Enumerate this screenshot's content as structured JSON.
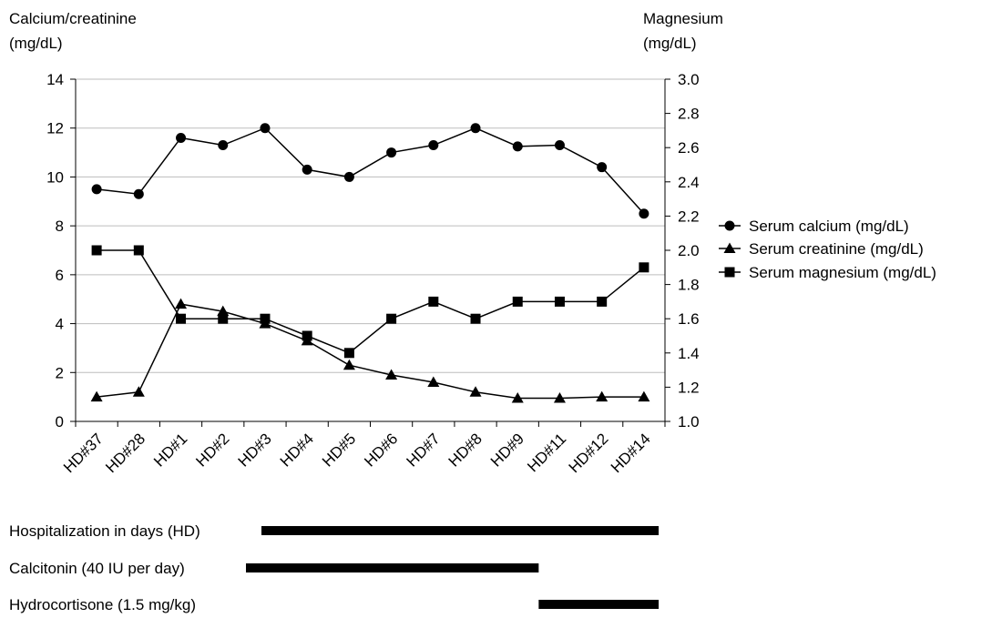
{
  "chart_data": {
    "type": "line",
    "left_axis_title": [
      "Calcium/creatinine",
      "(mg/dL)"
    ],
    "right_axis_title": [
      "Magnesium",
      "(mg/dL)"
    ],
    "categories": [
      "HD#37",
      "HD#28",
      "HD#1",
      "HD#2",
      "HD#3",
      "HD#4",
      "HD#5",
      "HD#6",
      "HD#7",
      "HD#8",
      "HD#9",
      "HD#11",
      "HD#12",
      "HD#14"
    ],
    "left_ylim": [
      0,
      14
    ],
    "left_yticks": [
      "0",
      "2",
      "4",
      "6",
      "8",
      "10",
      "12",
      "14"
    ],
    "right_ylim": [
      1.0,
      3.0
    ],
    "right_yticks": [
      "1.0",
      "1.2",
      "1.4",
      "1.6",
      "1.8",
      "2.0",
      "2.2",
      "2.4",
      "2.6",
      "2.8",
      "3.0"
    ],
    "grid": "horizontal",
    "legend_position": "right",
    "series": [
      {
        "name": "Serum calcium (mg/dL)",
        "axis": "left",
        "marker": "circle",
        "values": [
          9.5,
          9.3,
          11.6,
          11.3,
          12.0,
          10.3,
          10.0,
          11.0,
          11.3,
          12.0,
          11.25,
          11.3,
          10.4,
          8.5
        ]
      },
      {
        "name": "Serum creatinine (mg/dL)",
        "axis": "left",
        "marker": "triangle",
        "values": [
          1.0,
          1.2,
          4.8,
          4.5,
          4.0,
          3.3,
          2.3,
          1.9,
          1.6,
          1.2,
          0.95,
          0.95,
          1.0,
          1.0
        ]
      },
      {
        "name": "Serum magnesium (mg/dL)",
        "axis": "right",
        "marker": "square",
        "values": [
          2.0,
          2.0,
          1.6,
          1.6,
          1.6,
          1.5,
          1.4,
          1.6,
          1.7,
          1.6,
          1.7,
          1.7,
          1.7,
          1.9
        ]
      }
    ],
    "timeline": [
      {
        "label": "Hospitalization in days (HD)",
        "start": 1.6,
        "end": 13.85
      },
      {
        "label": "Calcitonin  (40 IU per day)",
        "start": 1.5,
        "end": 11.0
      },
      {
        "label": "Hydrocortisone (1.5 mg/kg)",
        "start": 11.0,
        "end": 13.85
      }
    ]
  }
}
